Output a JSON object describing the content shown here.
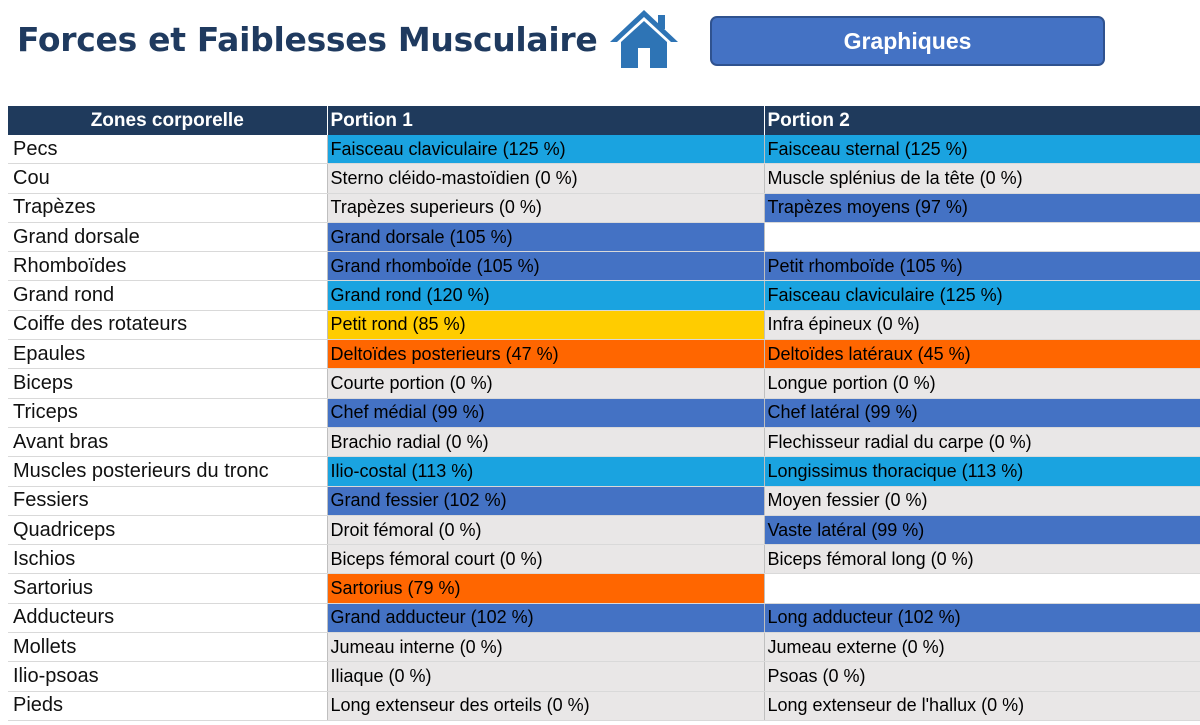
{
  "header": {
    "title": "Forces et Faiblesses Musculaire",
    "home_icon": "home-icon",
    "graph_button": "Graphiques"
  },
  "table": {
    "columns": [
      "Zones corporelle",
      "Portion 1",
      "Portion 2"
    ],
    "colors": {
      "cyan": "#1aa3e0",
      "blue": "#4472c4",
      "gray": "#e9e7e7",
      "white": "#ffffff",
      "yellow": "#ffcc00",
      "orange": "#ff6600",
      "header": "#1f3a5c"
    },
    "rows": [
      {
        "zone": "Pecs",
        "p1": "Faisceau claviculaire (125 %)",
        "c1": "cyan",
        "p2": "Faisceau sternal (125 %)",
        "c2": "cyan"
      },
      {
        "zone": "Cou",
        "p1": "Sterno cléido-mastoïdien (0 %)",
        "c1": "gray",
        "p2": "Muscle splénius de la tête (0 %)",
        "c2": "gray"
      },
      {
        "zone": "Trapèzes",
        "p1": "Trapèzes superieurs (0 %)",
        "c1": "gray",
        "p2": "Trapèzes moyens (97 %)",
        "c2": "blue"
      },
      {
        "zone": "Grand dorsale",
        "p1": "Grand dorsale (105 %)",
        "c1": "blue",
        "p2": "",
        "c2": "white"
      },
      {
        "zone": "Rhomboïdes",
        "p1": "Grand rhomboïde (105 %)",
        "c1": "blue",
        "p2": "Petit rhomboïde (105 %)",
        "c2": "blue"
      },
      {
        "zone": "Grand rond",
        "p1": "Grand rond (120 %)",
        "c1": "cyan",
        "p2": "Faisceau claviculaire (125 %)",
        "c2": "cyan"
      },
      {
        "zone": "Coiffe des rotateurs",
        "p1": "Petit rond (85 %)",
        "c1": "yellow",
        "p2": "Infra épineux (0 %)",
        "c2": "gray"
      },
      {
        "zone": "Epaules",
        "p1": "Deltoïdes posterieurs (47 %)",
        "c1": "orange",
        "p2": "Deltoïdes latéraux (45 %)",
        "c2": "orange"
      },
      {
        "zone": "Biceps",
        "p1": "Courte portion (0 %)",
        "c1": "gray",
        "p2": "Longue portion (0 %)",
        "c2": "gray"
      },
      {
        "zone": "Triceps",
        "p1": "Chef médial (99 %)",
        "c1": "blue",
        "p2": "Chef latéral (99 %)",
        "c2": "blue"
      },
      {
        "zone": "Avant bras",
        "p1": "Brachio radial (0 %)",
        "c1": "gray",
        "p2": "Flechisseur radial du carpe (0 %)",
        "c2": "gray"
      },
      {
        "zone": "Muscles posterieurs du tronc",
        "p1": "Ilio-costal (113 %)",
        "c1": "cyan",
        "p2": "Longissimus thoracique (113 %)",
        "c2": "cyan"
      },
      {
        "zone": "Fessiers",
        "p1": "Grand fessier (102 %)",
        "c1": "blue",
        "p2": "Moyen fessier (0 %)",
        "c2": "gray"
      },
      {
        "zone": "Quadriceps",
        "p1": "Droit fémoral (0 %)",
        "c1": "gray",
        "p2": "Vaste latéral (99 %)",
        "c2": "blue"
      },
      {
        "zone": "Ischios",
        "p1": "Biceps fémoral court (0 %)",
        "c1": "gray",
        "p2": "Biceps fémoral long (0 %)",
        "c2": "gray"
      },
      {
        "zone": "Sartorius",
        "p1": "Sartorius (79 %)",
        "c1": "orange",
        "p2": "",
        "c2": "white"
      },
      {
        "zone": "Adducteurs",
        "p1": "Grand adducteur (102 %)",
        "c1": "blue",
        "p2": "Long adducteur (102 %)",
        "c2": "blue"
      },
      {
        "zone": "Mollets",
        "p1": "Jumeau interne (0 %)",
        "c1": "gray",
        "p2": "Jumeau externe (0 %)",
        "c2": "gray"
      },
      {
        "zone": "Ilio-psoas",
        "p1": "Iliaque (0 %)",
        "c1": "gray",
        "p2": "Psoas (0 %)",
        "c2": "gray"
      },
      {
        "zone": "Pieds",
        "p1": "Long extenseur des orteils (0 %)",
        "c1": "gray",
        "p2": "Long extenseur de l'hallux (0 %)",
        "c2": "gray"
      }
    ]
  }
}
